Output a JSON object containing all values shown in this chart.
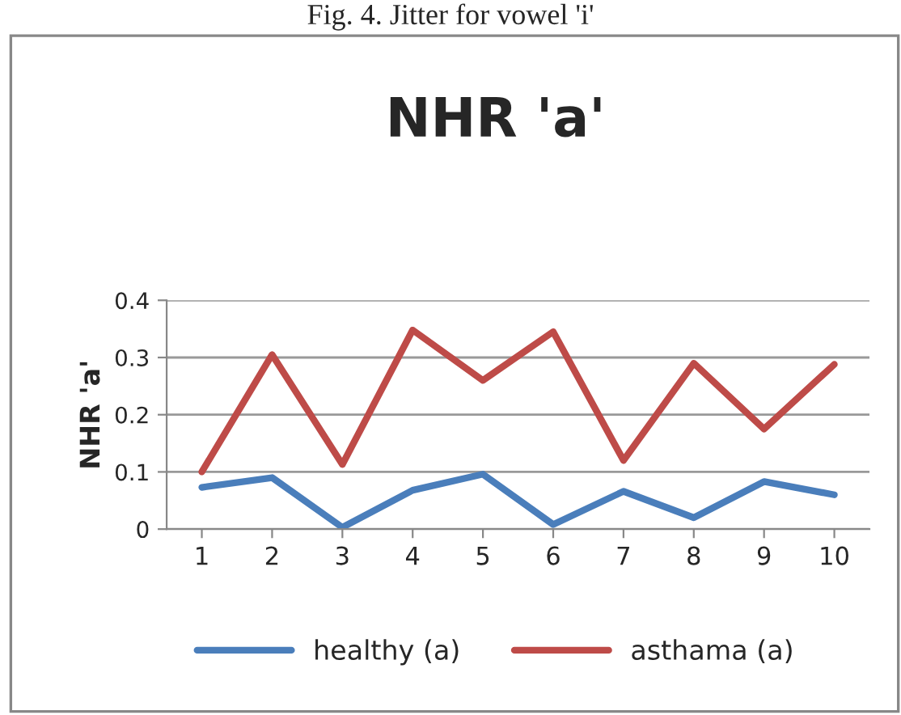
{
  "chart_data": {
    "type": "line",
    "title": "NHR 'a'",
    "ylabel": "NHR 'a'",
    "annotations": [
      "Fig. 4. Jitter for vowel 'i'"
    ],
    "categories": [
      "1",
      "2",
      "3",
      "4",
      "5",
      "6",
      "7",
      "8",
      "9",
      "10"
    ],
    "series": [
      {
        "name": "healthy (a)",
        "color": "#4a7ebb",
        "values": [
          0.073,
          0.09,
          0.003,
          0.068,
          0.096,
          0.008,
          0.066,
          0.02,
          0.083,
          0.06
        ]
      },
      {
        "name": "asthama (a)",
        "color": "#be4b48",
        "values": [
          0.1,
          0.305,
          0.113,
          0.348,
          0.26,
          0.345,
          0.12,
          0.29,
          0.175,
          0.288
        ]
      }
    ],
    "ylim": [
      0,
      0.4
    ],
    "yticks": [
      0,
      0.1,
      0.2,
      0.3,
      0.4
    ],
    "grid": "y",
    "legend": "bottom",
    "marker": "none",
    "line_style": "solid"
  }
}
